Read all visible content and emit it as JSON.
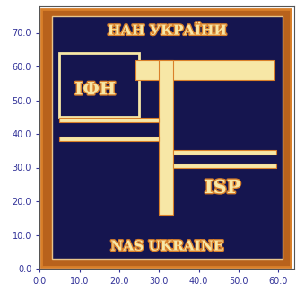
{
  "chart_data": {
    "type": "image",
    "annotations": [
      "НАН УКРАЇНИ",
      "ІФН",
      "ISP",
      "NAS UKRAINE"
    ],
    "xlim": [
      0,
      64
    ],
    "ylim": [
      0,
      78
    ],
    "xticks": [
      {
        "value": 0,
        "label": "0.0"
      },
      {
        "value": 10,
        "label": "10.0"
      },
      {
        "value": 20,
        "label": "20.0"
      },
      {
        "value": 30,
        "label": "30.0"
      },
      {
        "value": 40,
        "label": "40.0"
      },
      {
        "value": 50,
        "label": "50.0"
      },
      {
        "value": 60,
        "label": "60.0"
      }
    ],
    "yticks": [
      {
        "value": 0,
        "label": "0.0"
      },
      {
        "value": 10,
        "label": "10.0"
      },
      {
        "value": 20,
        "label": "20.0"
      },
      {
        "value": 30,
        "label": "30.0"
      },
      {
        "value": 40,
        "label": "40.0"
      },
      {
        "value": 50,
        "label": "50.0"
      },
      {
        "value": 60,
        "label": "60.0"
      },
      {
        "value": 70,
        "label": "70.0"
      }
    ],
    "grid": false
  }
}
